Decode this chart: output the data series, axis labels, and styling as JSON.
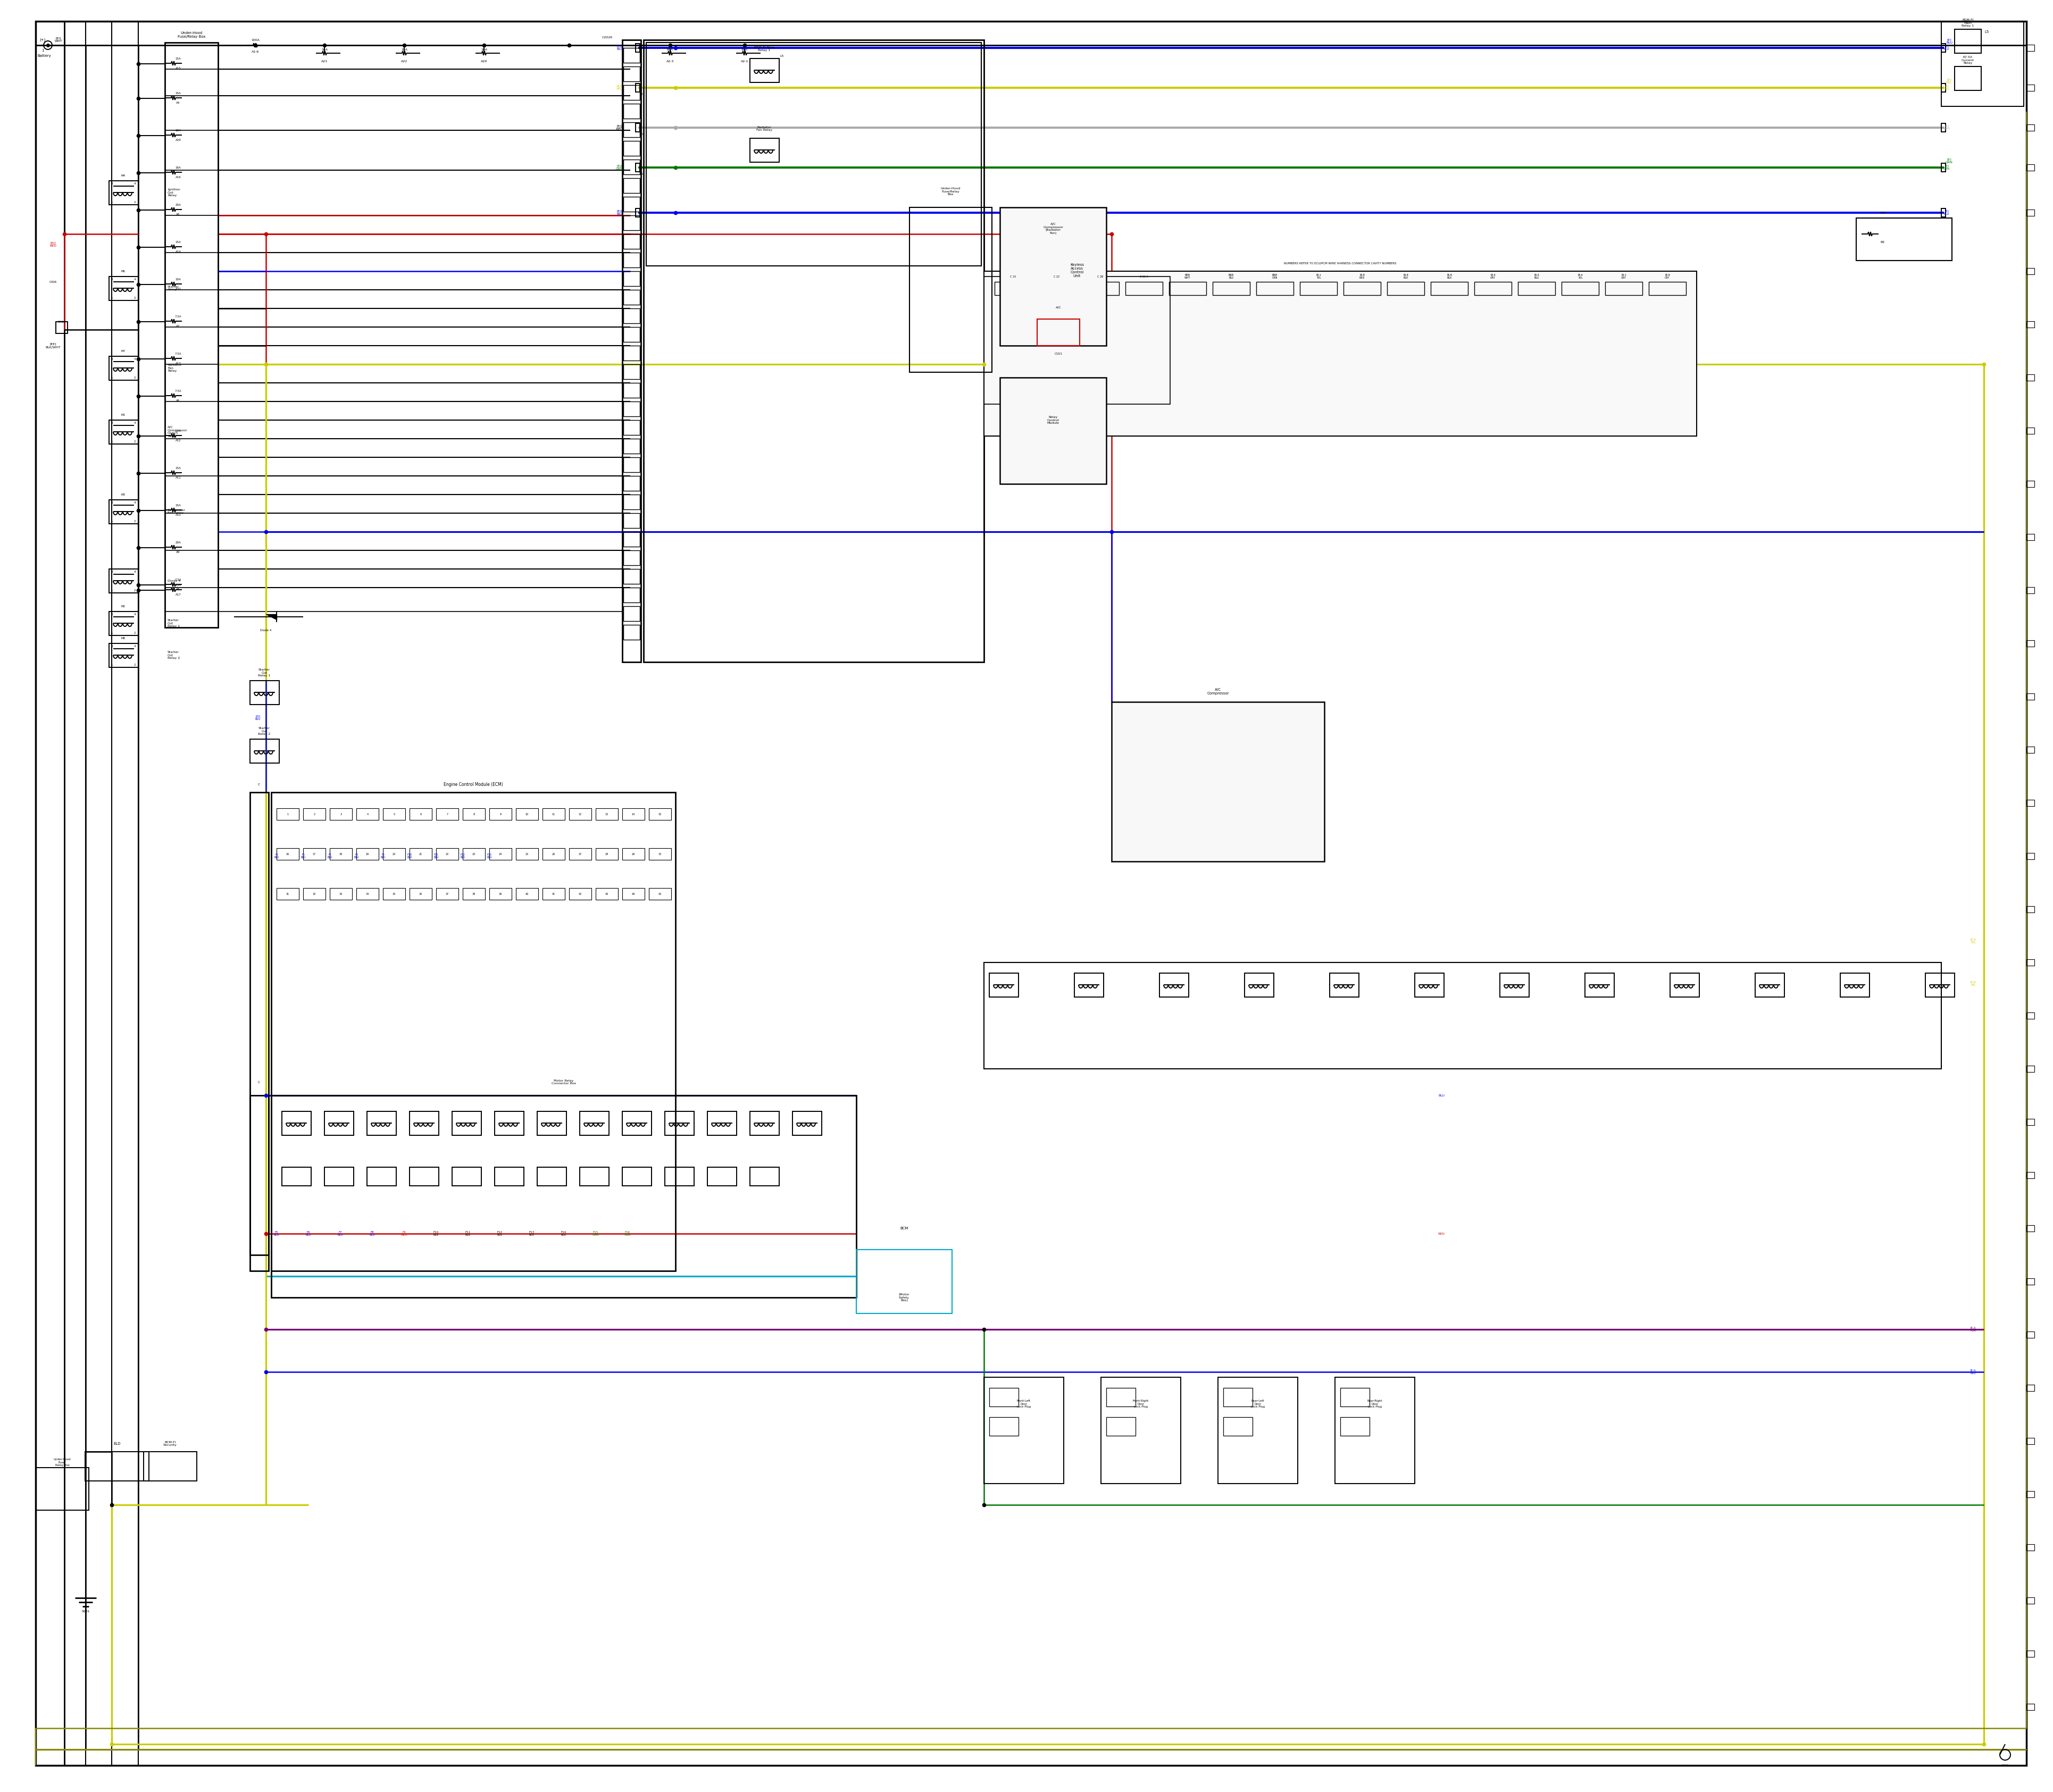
{
  "bg_color": "#ffffff",
  "fig_width": 38.4,
  "fig_height": 33.5,
  "colors": {
    "black": "#000000",
    "red": "#cc0000",
    "blue": "#0000ee",
    "yellow": "#cccc00",
    "green": "#007700",
    "cyan": "#00aacc",
    "purple": "#770077",
    "dark_yellow": "#888800",
    "gray": "#888888",
    "white_gray": "#aaaaaa",
    "dark_green": "#005500"
  },
  "lw": 1.8,
  "clw": 1.4,
  "fs": 7.0
}
